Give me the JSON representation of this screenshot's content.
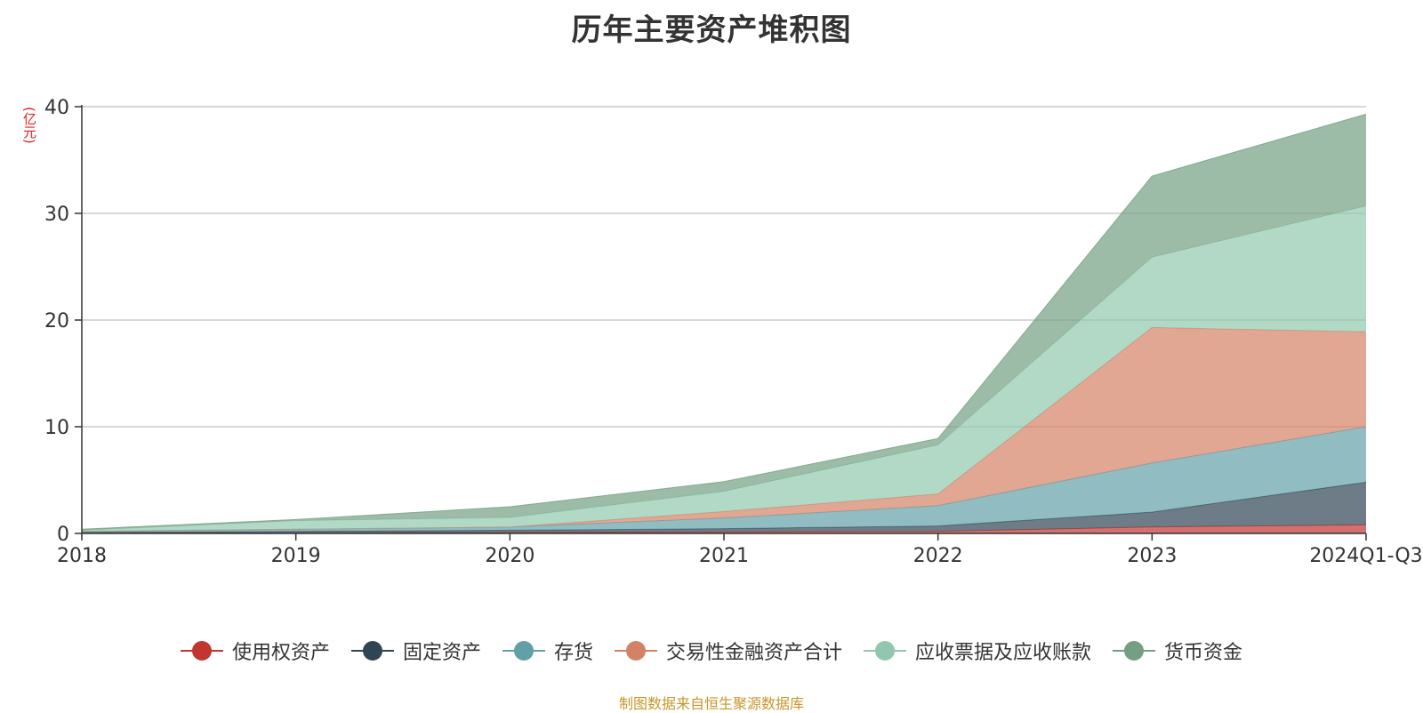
{
  "chart_data": {
    "type": "area",
    "stacked": true,
    "title": "历年主要资产堆积图",
    "ylabel": "(亿元)",
    "xlabel": "",
    "ylim": [
      0,
      40
    ],
    "yticks": [
      0,
      10,
      20,
      30,
      40
    ],
    "grid": true,
    "legend_position": "bottom",
    "categories": [
      "2018",
      "2019",
      "2020",
      "2021",
      "2022",
      "2023",
      "2024Q1-Q3"
    ],
    "series": [
      {
        "name": "使用权资产",
        "color": "#c23531",
        "values": [
          0.0,
          0.05,
          0.1,
          0.15,
          0.2,
          0.6,
          0.8
        ]
      },
      {
        "name": "固定资产",
        "color": "#2f4554",
        "values": [
          0.1,
          0.15,
          0.2,
          0.3,
          0.5,
          1.4,
          4.0
        ]
      },
      {
        "name": "存货",
        "color": "#61a0a8",
        "values": [
          0.1,
          0.2,
          0.3,
          1.0,
          1.9,
          4.6,
          5.2
        ]
      },
      {
        "name": "交易性金融资产合计",
        "color": "#d48265",
        "values": [
          0.0,
          0.0,
          0.0,
          0.6,
          1.1,
          12.7,
          8.9
        ]
      },
      {
        "name": "应收票据及应收账款",
        "color": "#91c7ae",
        "values": [
          0.1,
          0.8,
          0.9,
          1.9,
          4.6,
          6.6,
          11.8
        ]
      },
      {
        "name": "货币资金",
        "color": "#749f83",
        "values": [
          0.1,
          0.1,
          1.0,
          0.9,
          0.6,
          7.6,
          8.6
        ]
      }
    ],
    "source": "制图数据来自恒生聚源数据库"
  }
}
